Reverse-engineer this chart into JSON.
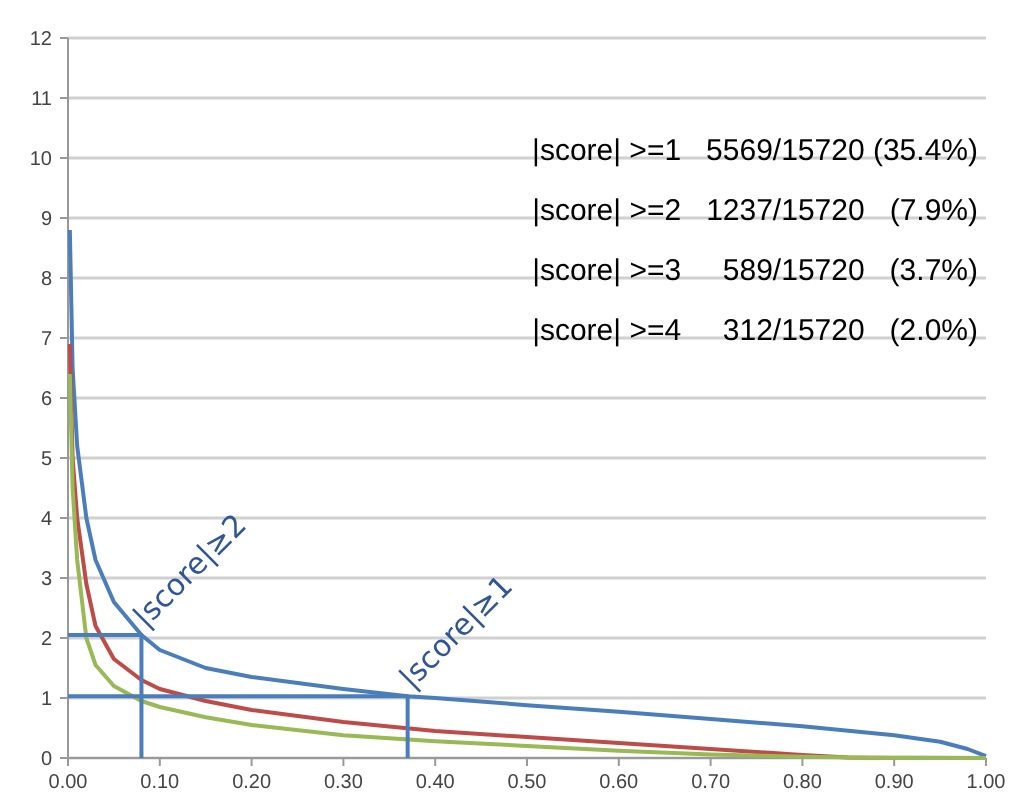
{
  "chart_data": {
    "type": "line",
    "xlim": [
      0,
      1
    ],
    "ylim": [
      0,
      12
    ],
    "xticks": [
      {
        "value": 0,
        "label": "0.00"
      },
      {
        "value": 0.1,
        "label": "0.10"
      },
      {
        "value": 0.2,
        "label": "0.20"
      },
      {
        "value": 0.3,
        "label": "0.30"
      },
      {
        "value": 0.4,
        "label": "0.40"
      },
      {
        "value": 0.5,
        "label": "0.50"
      },
      {
        "value": 0.6,
        "label": "0.60"
      },
      {
        "value": 0.7,
        "label": "0.70"
      },
      {
        "value": 0.8,
        "label": "0.80"
      },
      {
        "value": 0.9,
        "label": "0.90"
      },
      {
        "value": 1,
        "label": "1.00"
      }
    ],
    "yticks": [
      0,
      1,
      2,
      3,
      4,
      5,
      6,
      7,
      8,
      9,
      10,
      11,
      12
    ],
    "grid": "y",
    "marker": "none",
    "line_style": "solid",
    "series": [
      {
        "color": "#4a7ebb",
        "x": [
          0.002,
          0.005,
          0.01,
          0.02,
          0.03,
          0.05,
          0.08,
          0.1,
          0.15,
          0.2,
          0.3,
          0.37,
          0.4,
          0.5,
          0.6,
          0.7,
          0.8,
          0.9,
          0.95,
          0.98,
          1.0
        ],
        "values": [
          8.8,
          6.5,
          5.2,
          4.0,
          3.3,
          2.6,
          2.05,
          1.8,
          1.5,
          1.35,
          1.15,
          1.03,
          1.0,
          0.88,
          0.77,
          0.65,
          0.53,
          0.38,
          0.27,
          0.15,
          0.03
        ]
      },
      {
        "color": "#be4b48",
        "x": [
          0.002,
          0.005,
          0.01,
          0.02,
          0.03,
          0.05,
          0.08,
          0.1,
          0.15,
          0.2,
          0.3,
          0.4,
          0.5,
          0.6,
          0.7,
          0.8,
          0.85,
          1.0
        ],
        "values": [
          6.9,
          5.0,
          4.0,
          2.9,
          2.2,
          1.65,
          1.3,
          1.15,
          0.95,
          0.8,
          0.6,
          0.45,
          0.35,
          0.25,
          0.15,
          0.05,
          0.01,
          0
        ]
      },
      {
        "color": "#98b954",
        "x": [
          0.002,
          0.005,
          0.01,
          0.02,
          0.03,
          0.05,
          0.08,
          0.1,
          0.15,
          0.2,
          0.3,
          0.4,
          0.5,
          0.6,
          0.7,
          0.8,
          0.9,
          1.0
        ],
        "values": [
          6.4,
          4.5,
          3.3,
          2.0,
          1.55,
          1.2,
          0.95,
          0.85,
          0.68,
          0.55,
          0.38,
          0.28,
          0.2,
          0.12,
          0.06,
          0.02,
          0.0,
          0
        ]
      },
      {
        "color": "#4a7ebb",
        "x": [
          0,
          0.08,
          0.08
        ],
        "values": [
          2.05,
          2.05,
          0
        ]
      },
      {
        "color": "#4a7ebb",
        "x": [
          0,
          0.37,
          0.37
        ],
        "values": [
          1.03,
          1.03,
          0
        ]
      }
    ],
    "annotations": [
      "|score| >=1   5569/15720 (35.4%)",
      "|score| >=2   1237/15720   (7.9%)",
      "|score| >=3     589/15720   (3.7%)",
      "|score| >=4     312/15720   (2.0%)",
      {
        "text": "|score|≥2",
        "x": 0.08,
        "y": 2.05
      },
      {
        "text": "|score|≥1",
        "x": 0.37,
        "y": 1.03
      }
    ]
  }
}
